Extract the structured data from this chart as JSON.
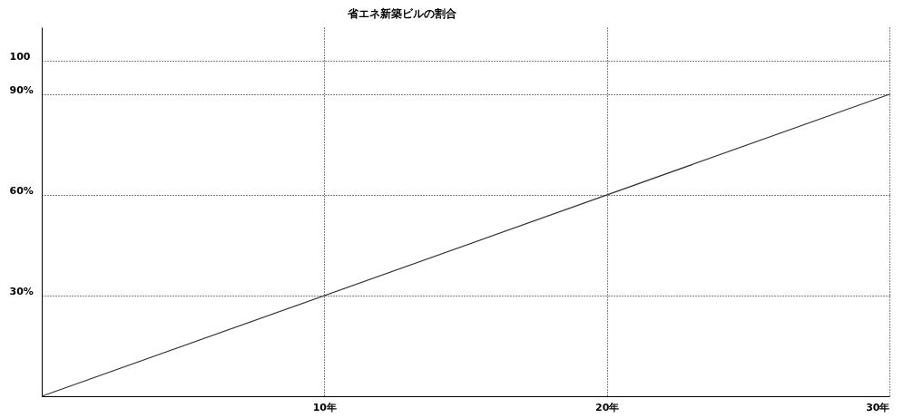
{
  "chart_data": {
    "type": "line",
    "title": "省エネ新築ビルの割合",
    "x": [
      0,
      30
    ],
    "series": [
      {
        "color": "#333333",
        "values": [
          0,
          90
        ]
      }
    ],
    "xlim": [
      0,
      30
    ],
    "ylim": [
      0,
      110
    ],
    "xticks": [
      {
        "value": 10,
        "label": "10年"
      },
      {
        "value": 20,
        "label": "20年"
      },
      {
        "value": 30,
        "label": "30年"
      }
    ],
    "yticks": [
      {
        "value": 30,
        "label": "30%"
      },
      {
        "value": 60,
        "label": "60%"
      },
      {
        "value": 90,
        "label": "90%"
      },
      100
    ],
    "grid": true,
    "marker": "none",
    "line_style": "solid"
  }
}
